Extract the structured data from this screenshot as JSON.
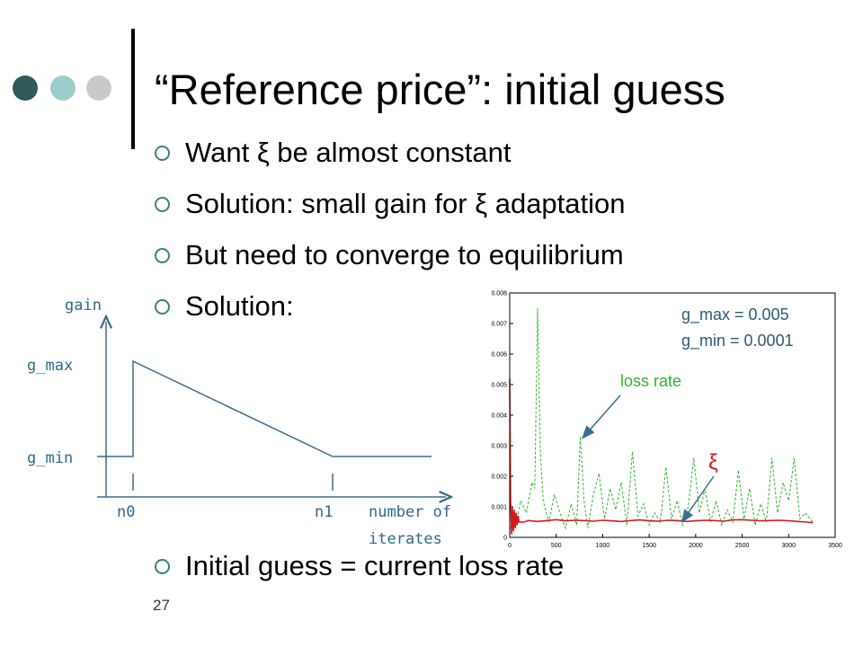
{
  "slide": {
    "title": "“Reference price”: initial guess",
    "bullets": [
      "Want ξ be almost constant",
      "Solution: small gain for ξ adaptation",
      "But need to converge to equilibrium",
      "Solution:",
      "Initial guess = current loss rate"
    ],
    "page_number": "27"
  },
  "gain_diagram": {
    "y_label": "gain",
    "g_max_label": "g_max",
    "g_min_label": "g_min",
    "n0_label": "n0",
    "n1_label": "n1",
    "x_label_line1": "number of",
    "x_label_line2": "iterates"
  },
  "chart_data": {
    "type": "line",
    "x_ticks": [
      "0",
      "500",
      "1000",
      "1500",
      "2000",
      "2500",
      "3000",
      "3500"
    ],
    "y_ticks": [
      "0",
      "0.001",
      "0.002",
      "0.003",
      "0.004",
      "0.005",
      "0.006",
      "0.007",
      "0.008"
    ],
    "xlim": [
      0,
      3500
    ],
    "ylim": [
      0,
      0.008
    ],
    "annotations": {
      "params_line1": "g_max = 0.005",
      "params_line2": "g_min = 0.0001",
      "loss_rate": "loss rate",
      "xi": "ξ"
    },
    "series": [
      {
        "color": "#2db52d",
        "style": "dashed",
        "x": [
          0,
          60,
          120,
          180,
          240,
          270,
          300,
          330,
          360,
          420,
          480,
          540,
          600,
          660,
          720,
          760,
          800,
          840,
          900,
          960,
          1020,
          1080,
          1140,
          1200,
          1260,
          1320,
          1380,
          1440,
          1500,
          1560,
          1620,
          1680,
          1740,
          1800,
          1860,
          1920,
          1980,
          2040,
          2100,
          2160,
          2220,
          2280,
          2340,
          2400,
          2460,
          2520,
          2580,
          2640,
          2700,
          2760,
          2820,
          2880,
          2940,
          3000,
          3060,
          3120,
          3180,
          3260
        ],
        "y": [
          0.0003,
          0.0004,
          0.0012,
          0.0008,
          0.0018,
          0.0016,
          0.0075,
          0.0028,
          0.0012,
          0.0005,
          0.0014,
          0.0008,
          0.0003,
          0.0011,
          0.0004,
          0.0033,
          0.0012,
          0.0003,
          0.0014,
          0.0021,
          0.0006,
          0.0016,
          0.0009,
          0.0018,
          0.0004,
          0.0028,
          0.0007,
          0.0011,
          0.0004,
          0.0008,
          0.0005,
          0.0023,
          0.0006,
          0.0012,
          0.0004,
          0.001,
          0.0026,
          0.0008,
          0.0016,
          0.0005,
          0.0012,
          0.0004,
          0.0009,
          0.0005,
          0.0022,
          0.0006,
          0.0016,
          0.0004,
          0.0011,
          0.0005,
          0.0026,
          0.0008,
          0.0018,
          0.0012,
          0.0026,
          0.0006,
          0.0008,
          0.0005
        ]
      },
      {
        "color": "#d01c1c",
        "style": "solid",
        "x": [
          0,
          10,
          20,
          30,
          40,
          50,
          60,
          70,
          80,
          90,
          100,
          150,
          200,
          300,
          400,
          500,
          600,
          700,
          800,
          900,
          1000,
          1100,
          1200,
          1300,
          1400,
          1500,
          1600,
          1700,
          1800,
          1900,
          2000,
          2100,
          2200,
          2300,
          2400,
          2500,
          2600,
          2700,
          2800,
          2900,
          3000,
          3100,
          3200,
          3260
        ],
        "y": [
          0.0052,
          0.0012,
          0.0001,
          0.001,
          0.0002,
          0.0009,
          0.0003,
          0.0008,
          0.0004,
          0.0007,
          0.0005,
          0.0005,
          0.00055,
          0.00052,
          0.00055,
          0.00058,
          0.00054,
          0.00056,
          0.00055,
          0.00053,
          0.00056,
          0.00054,
          0.00052,
          0.00055,
          0.00057,
          0.00054,
          0.00053,
          0.00056,
          0.00055,
          0.00052,
          0.00054,
          0.00056,
          0.00055,
          0.00053,
          0.00057,
          0.00058,
          0.00056,
          0.00054,
          0.00055,
          0.00056,
          0.00054,
          0.00052,
          0.0005,
          0.00048
        ]
      }
    ]
  }
}
